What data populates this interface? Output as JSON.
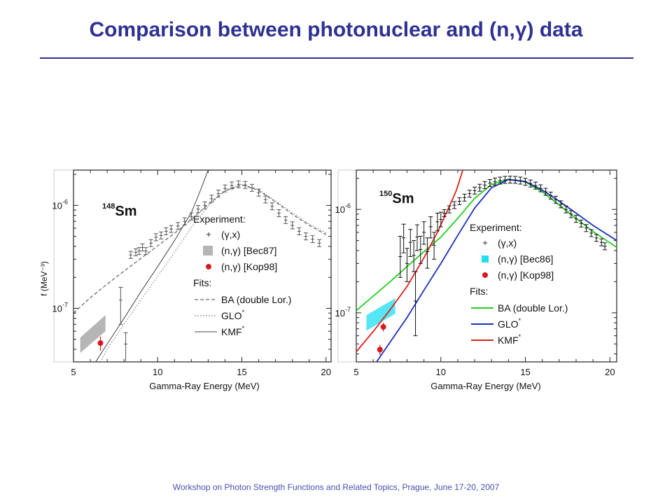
{
  "slide": {
    "title": "Comparison between photonuclear and (n,γ) data",
    "footer": "Workshop on Photon Strength Functions and Related Topics, Prague, June 17-20, 2007",
    "title_color": "#2e3192",
    "rule_color": "#2e3192",
    "footer_color": "#4a4fb0"
  },
  "chart_data": [
    {
      "type": "scatter",
      "nucleus_mass": "148",
      "nucleus_symbol": "Sm",
      "xlabel": "Gamma-Ray Energy (MeV)",
      "ylabel": "f (MeV⁻³)",
      "xlim": [
        5,
        20.3
      ],
      "ylim": [
        3.02e-08,
        2.2e-06
      ],
      "y_scale": "log",
      "xticks": [
        5,
        10,
        15,
        20
      ],
      "yticks": [
        {
          "value": 1e-06,
          "base": "10",
          "exp": "-6"
        },
        {
          "value": 1e-07,
          "base": "10",
          "exp": "-7"
        }
      ],
      "legend": {
        "experiment_title": "Experiment:",
        "fits_title": "Fits:",
        "experiments": [
          {
            "label": "(γ,x)",
            "marker": "cross"
          },
          {
            "label": "(n,γ) [Bec87]",
            "marker": "gray-square"
          },
          {
            "label": "(n,γ) [Kop98]",
            "marker": "red-dot"
          }
        ],
        "fits": [
          {
            "label": "BA (double Lor.)",
            "style": "dashed"
          },
          {
            "label": "GLO",
            "sup": "*",
            "style": "dotted"
          },
          {
            "label": "KMF",
            "sup": "*",
            "style": "solid"
          }
        ]
      },
      "gamma_x": [
        {
          "x": 8.4,
          "y": 3.3e-07
        },
        {
          "x": 8.7,
          "y": 3.5e-07
        },
        {
          "x": 8.9,
          "y": 3.6e-07
        },
        {
          "x": 9.1,
          "y": 3.9e-07
        },
        {
          "x": 9.3,
          "y": 3.6e-07
        },
        {
          "x": 9.6,
          "y": 4.3e-07
        },
        {
          "x": 9.9,
          "y": 4.9e-07
        },
        {
          "x": 10.2,
          "y": 5.1e-07
        },
        {
          "x": 10.5,
          "y": 5.6e-07
        },
        {
          "x": 10.8,
          "y": 5.9e-07
        },
        {
          "x": 11.2,
          "y": 6.3e-07
        },
        {
          "x": 11.6,
          "y": 7e-07
        },
        {
          "x": 12.0,
          "y": 7.8e-07
        },
        {
          "x": 12.4,
          "y": 9.2e-07
        },
        {
          "x": 12.8,
          "y": 1e-06
        },
        {
          "x": 13.2,
          "y": 1.16e-06
        },
        {
          "x": 13.6,
          "y": 1.3e-06
        },
        {
          "x": 14.0,
          "y": 1.46e-06
        },
        {
          "x": 14.4,
          "y": 1.56e-06
        },
        {
          "x": 14.8,
          "y": 1.6e-06
        },
        {
          "x": 15.2,
          "y": 1.58e-06
        },
        {
          "x": 15.6,
          "y": 1.48e-06
        },
        {
          "x": 16.0,
          "y": 1.33e-06
        },
        {
          "x": 16.4,
          "y": 1.14e-06
        },
        {
          "x": 16.8,
          "y": 9.8e-07
        },
        {
          "x": 17.2,
          "y": 8.4e-07
        },
        {
          "x": 17.6,
          "y": 7.2e-07
        },
        {
          "x": 18.0,
          "y": 6.4e-07
        },
        {
          "x": 18.4,
          "y": 5.6e-07
        },
        {
          "x": 18.8,
          "y": 5e-07
        },
        {
          "x": 19.2,
          "y": 4.7e-07
        },
        {
          "x": 19.6,
          "y": 4.3e-07
        }
      ],
      "gamma_x_low": [
        {
          "x": 7.8,
          "y": 1.2e-07,
          "ylo": 7e-08,
          "yhi": 1.6e-07
        },
        {
          "x": 8.1,
          "y": 4.5e-08,
          "ylo": 2.8e-08,
          "yhi": 5.8e-08
        }
      ],
      "bec_band": [
        {
          "x": 5.4,
          "y": 5.2e-08
        },
        {
          "x": 6.9,
          "y": 8.6e-08
        },
        {
          "x": 6.9,
          "y": 6e-08
        },
        {
          "x": 5.4,
          "y": 3.7e-08
        }
      ],
      "kop98": [
        {
          "x": 6.6,
          "y": 4.6e-08,
          "ylo": 3.9e-08,
          "yhi": 5.3e-08
        }
      ],
      "fits": [
        {
          "name": "BA (double Lor.)",
          "style": "dashed",
          "color": "#444444",
          "x": [
            5.0,
            6,
            7,
            8,
            9,
            10,
            11,
            12,
            13,
            14,
            15,
            16,
            17,
            18,
            19,
            20
          ],
          "y": [
            9e-08,
            1.27e-07,
            1.72e-07,
            2.3e-07,
            3.05e-07,
            4.05e-07,
            5.35e-07,
            7.3e-07,
            1.02e-06,
            1.38e-06,
            1.58e-06,
            1.4e-06,
            1.08e-06,
            8.2e-07,
            6.4e-07,
            5.2e-07
          ]
        },
        {
          "name": "GLO*",
          "style": "dotted",
          "color": "#666666",
          "x": [
            6.6,
            7,
            8,
            9,
            10,
            11,
            12,
            13,
            14,
            15,
            16,
            17,
            18,
            19,
            20
          ],
          "y": [
            3e-08,
            4e-08,
            7e-08,
            1.2e-07,
            2.05e-07,
            3.5e-07,
            6.1e-07,
            9.8e-07,
            1.42e-06,
            1.6e-06,
            1.42e-06,
            1.1e-06,
            8.5e-07,
            6.6e-07,
            5.4e-07
          ]
        },
        {
          "name": "KMF*",
          "style": "solid",
          "color": "#444444",
          "x": [
            6.3,
            7,
            8,
            9,
            10,
            11,
            12,
            12.5,
            13
          ],
          "y": [
            3e-08,
            4.5e-08,
            8e-08,
            1.45e-07,
            2.55e-07,
            4.55e-07,
            8.5e-07,
            1.35e-06,
            2.2e-06
          ]
        }
      ]
    },
    {
      "type": "scatter",
      "nucleus_mass": "150",
      "nucleus_symbol": "Sm",
      "xlabel": "Gamma-Ray Energy (MeV)",
      "ylabel": "",
      "xlim": [
        5,
        20.4
      ],
      "ylim": [
        3.35e-08,
        2.4e-06
      ],
      "y_scale": "log",
      "xticks": [
        5,
        10,
        15,
        20
      ],
      "yticks": [
        {
          "value": 1e-06,
          "base": "10",
          "exp": "-6"
        },
        {
          "value": 1e-07,
          "base": "10",
          "exp": "-7"
        }
      ],
      "legend": {
        "experiment_title": "Experiment:",
        "fits_title": "Fits:",
        "experiments": [
          {
            "label": "(γ,x)",
            "marker": "cross"
          },
          {
            "label": "(n,γ) [Bec86]",
            "marker": "cyan-square"
          },
          {
            "label": "(n,γ) [Kop98]",
            "marker": "red-dot"
          }
        ],
        "fits": [
          {
            "label": "BA (double Lor.)",
            "color": "#22cc22"
          },
          {
            "label": "GLO",
            "sup": "*",
            "color": "#1a2fb8"
          },
          {
            "label": "KMF",
            "sup": "*",
            "color": "#e0201a"
          }
        ]
      },
      "gamma_x": [
        {
          "x": 7.6,
          "y": 3.5e-07,
          "ylo": 2.2e-07,
          "yhi": 5.5e-07
        },
        {
          "x": 7.8,
          "y": 5.3e-07,
          "ylo": 3.8e-07,
          "yhi": 7.2e-07
        },
        {
          "x": 8.0,
          "y": 3e-07,
          "ylo": 2e-07,
          "yhi": 4.2e-07
        },
        {
          "x": 8.2,
          "y": 4.8e-07,
          "ylo": 3.5e-07,
          "yhi": 6.4e-07
        },
        {
          "x": 8.4,
          "y": 3.6e-07,
          "ylo": 2.5e-07,
          "yhi": 5e-07
        },
        {
          "x": 8.6,
          "y": 5.4e-07,
          "ylo": 4e-07,
          "yhi": 7.1e-07
        },
        {
          "x": 8.8,
          "y": 4.1e-07,
          "ylo": 3e-07,
          "yhi": 5.5e-07
        },
        {
          "x": 9.0,
          "y": 6e-07,
          "ylo": 4.6e-07,
          "yhi": 7.6e-07
        },
        {
          "x": 9.2,
          "y": 3.9e-07,
          "ylo": 2.7e-07,
          "yhi": 5.3e-07
        },
        {
          "x": 9.4,
          "y": 6.8e-07,
          "ylo": 5.3e-07,
          "yhi": 8.5e-07
        },
        {
          "x": 9.6,
          "y": 4.5e-07,
          "ylo": 3.3e-07,
          "yhi": 6e-07
        },
        {
          "x": 9.8,
          "y": 7.6e-07,
          "ylo": 6.2e-07,
          "yhi": 9.2e-07
        },
        {
          "x": 10.0,
          "y": 8e-07,
          "ylo": 6.8e-07,
          "yhi": 9.4e-07
        },
        {
          "x": 8.5,
          "y": 1.3e-07,
          "ylo": 6e-08,
          "yhi": 2.5e-07
        },
        {
          "x": 10.2,
          "y": 9.2e-07
        },
        {
          "x": 10.5,
          "y": 1e-06
        },
        {
          "x": 10.8,
          "y": 1.1e-06
        },
        {
          "x": 11.1,
          "y": 1.2e-06
        },
        {
          "x": 11.4,
          "y": 1.3e-06
        },
        {
          "x": 11.7,
          "y": 1.42e-06
        },
        {
          "x": 12.0,
          "y": 1.52e-06
        },
        {
          "x": 12.3,
          "y": 1.62e-06
        },
        {
          "x": 12.6,
          "y": 1.72e-06
        },
        {
          "x": 12.9,
          "y": 1.8e-06
        },
        {
          "x": 13.2,
          "y": 1.86e-06
        },
        {
          "x": 13.5,
          "y": 1.9e-06
        },
        {
          "x": 13.8,
          "y": 1.93e-06
        },
        {
          "x": 14.1,
          "y": 1.94e-06
        },
        {
          "x": 14.4,
          "y": 1.93e-06
        },
        {
          "x": 14.7,
          "y": 1.9e-06
        },
        {
          "x": 15.0,
          "y": 1.85e-06
        },
        {
          "x": 15.3,
          "y": 1.78e-06
        },
        {
          "x": 15.6,
          "y": 1.7e-06
        },
        {
          "x": 15.9,
          "y": 1.6e-06
        },
        {
          "x": 16.2,
          "y": 1.48e-06
        },
        {
          "x": 16.5,
          "y": 1.36e-06
        },
        {
          "x": 16.8,
          "y": 1.24e-06
        },
        {
          "x": 17.1,
          "y": 1.12e-06
        },
        {
          "x": 17.4,
          "y": 1e-06
        },
        {
          "x": 17.7,
          "y": 9e-07
        },
        {
          "x": 18.0,
          "y": 8.1e-07
        },
        {
          "x": 18.3,
          "y": 7.3e-07
        },
        {
          "x": 18.6,
          "y": 6.6e-07
        },
        {
          "x": 18.9,
          "y": 5.9e-07
        },
        {
          "x": 19.2,
          "y": 5.3e-07
        },
        {
          "x": 19.5,
          "y": 4.8e-07
        },
        {
          "x": 19.7,
          "y": 4.4e-07
        }
      ],
      "bec_band": [
        {
          "x": 5.6,
          "y": 9.5e-08
        },
        {
          "x": 7.3,
          "y": 1.38e-07
        },
        {
          "x": 7.3,
          "y": 9.8e-08
        },
        {
          "x": 5.6,
          "y": 6.7e-08
        }
      ],
      "kop98": [
        {
          "x": 6.6,
          "y": 7.3e-08,
          "ylo": 6.6e-08,
          "yhi": 8e-08
        },
        {
          "x": 6.4,
          "y": 4.4e-08,
          "ylo": 3.9e-08,
          "yhi": 4.9e-08
        }
      ],
      "fits": [
        {
          "name": "BA (double Lor.)",
          "color": "#22cc22",
          "x": [
            5,
            6,
            7,
            8,
            9,
            10,
            11,
            12,
            13,
            14,
            15,
            16,
            17,
            18,
            19,
            20.4
          ],
          "y": [
            1.05e-07,
            1.45e-07,
            2e-07,
            2.8e-07,
            3.9e-07,
            5.4e-07,
            8.2e-07,
            1.28e-06,
            1.74e-06,
            1.96e-06,
            1.84e-06,
            1.48e-06,
            1.1e-06,
            8.2e-07,
            6.1e-07,
            4.3e-07
          ]
        },
        {
          "name": "GLO*",
          "color": "#1a2fb8",
          "x": [
            6.2,
            7,
            8,
            9,
            10,
            11,
            12,
            13,
            14,
            15,
            16,
            17,
            18,
            19,
            20.4
          ],
          "y": [
            3.35e-08,
            5.2e-08,
            9e-08,
            1.65e-07,
            3e-07,
            5.6e-07,
            1.03e-06,
            1.62e-06,
            1.94e-06,
            1.86e-06,
            1.54e-06,
            1.2e-06,
            9.2e-07,
            7e-07,
            5e-07
          ]
        },
        {
          "name": "KMF*",
          "color": "#e0201a",
          "x": [
            5,
            6,
            7,
            8,
            9,
            9.8,
            10.4,
            10.9,
            11.3
          ],
          "y": [
            4.2e-08,
            6.6e-08,
            1.07e-07,
            1.8e-07,
            3.4e-07,
            6e-07,
            9.8e-07,
            1.5e-06,
            2.4e-06
          ]
        }
      ]
    }
  ]
}
